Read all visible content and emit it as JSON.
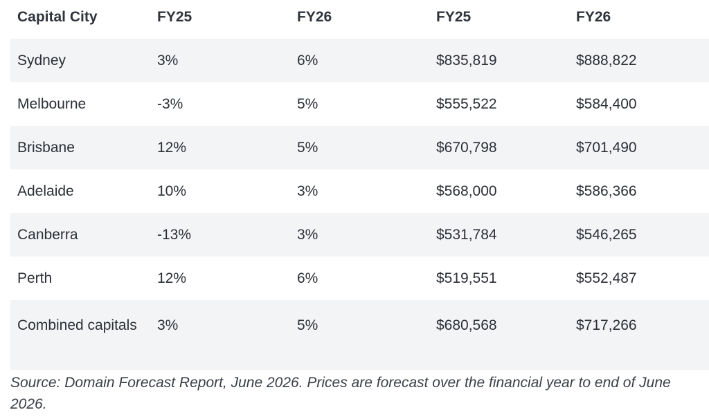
{
  "table": {
    "headers": [
      "Capital City",
      "FY25",
      "FY26",
      "FY25",
      "FY26"
    ],
    "rows": [
      [
        "Sydney",
        "3%",
        "6%",
        "$835,819",
        "$888,822"
      ],
      [
        "Melbourne",
        "-3%",
        "5%",
        "$555,522",
        "$584,400"
      ],
      [
        "Brisbane",
        "12%",
        "5%",
        "$670,798",
        "$701,490"
      ],
      [
        "Adelaide",
        "10%",
        "3%",
        "$568,000",
        "$586,366"
      ],
      [
        "Canberra",
        "-13%",
        "3%",
        "$531,784",
        "$546,265"
      ],
      [
        "Perth",
        "12%",
        "6%",
        "$519,551",
        "$552,487"
      ],
      [
        "Combined capitals",
        "3%",
        "5%",
        "$680,568",
        "$717,266"
      ]
    ]
  },
  "caption": "Source: Domain Forecast Report, June 2026. Prices are forecast over the financial year to end of June 2026.",
  "colors": {
    "stripe": "#f3f4f6",
    "text": "#2b2f36"
  }
}
